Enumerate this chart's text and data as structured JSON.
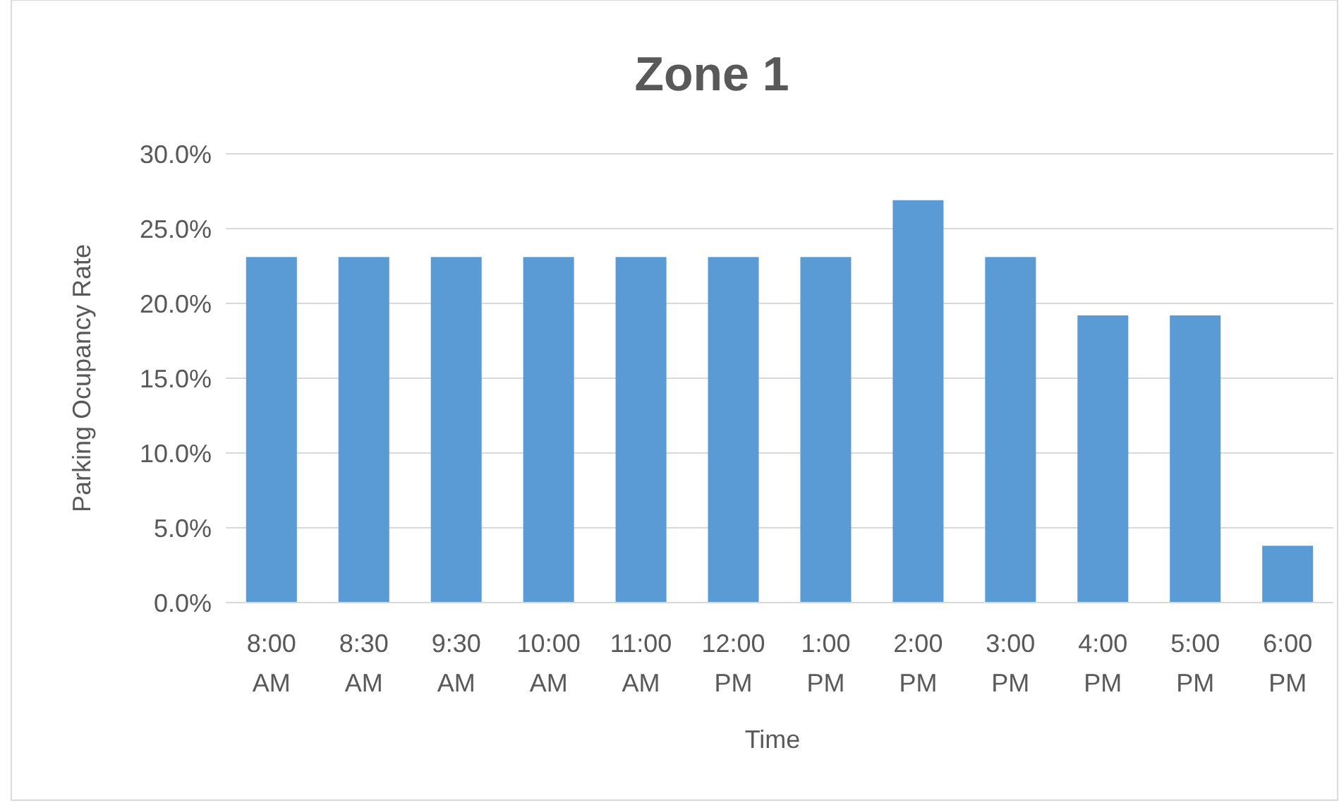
{
  "chart_data": {
    "type": "bar",
    "title": "Zone 1",
    "xlabel": "Time",
    "ylabel": "Parking Ocupancy Rate",
    "categories": [
      "8:00 AM",
      "8:30 AM",
      "9:30 AM",
      "10:00 AM",
      "11:00 AM",
      "12:00 PM",
      "1:00 PM",
      "2:00 PM",
      "3:00 PM",
      "4:00 PM",
      "5:00 PM",
      "6:00 PM"
    ],
    "values": [
      23.1,
      23.1,
      23.1,
      23.1,
      23.1,
      23.1,
      23.1,
      26.9,
      23.1,
      19.2,
      19.2,
      3.8
    ],
    "color": "#5b9bd5",
    "ylim": [
      0,
      30
    ],
    "yticks": [
      {
        "value": 0,
        "label": "0.0%"
      },
      {
        "value": 5,
        "label": "5.0%"
      },
      {
        "value": 10,
        "label": "10.0%"
      },
      {
        "value": 15,
        "label": "15.0%"
      },
      {
        "value": 20,
        "label": "20.0%"
      },
      {
        "value": 25,
        "label": "25.0%"
      },
      {
        "value": 30,
        "label": "30.0%"
      }
    ],
    "grid": "y"
  }
}
